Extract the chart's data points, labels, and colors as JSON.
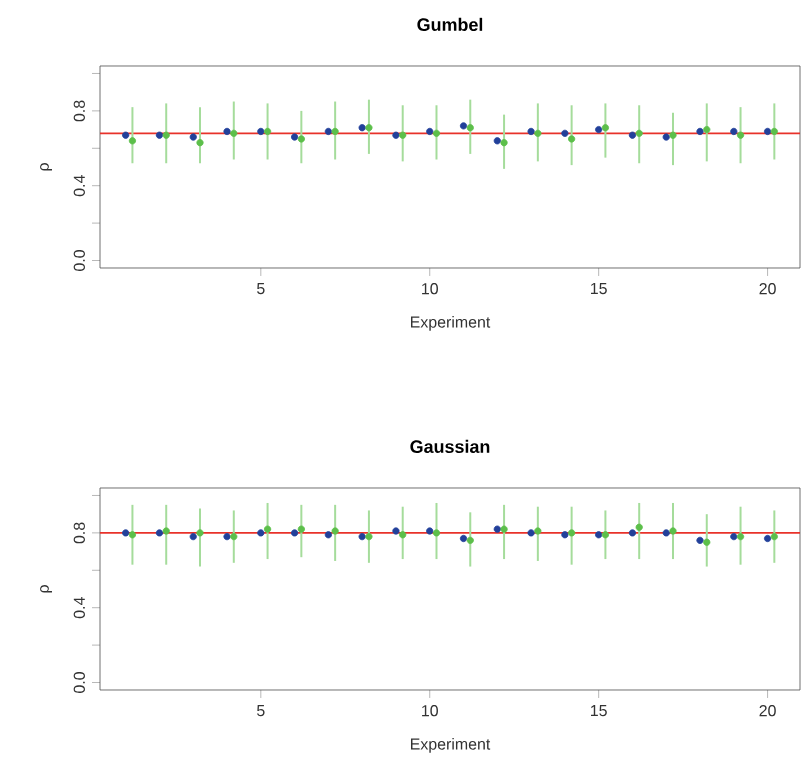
{
  "chart_data": [
    {
      "type": "scatter",
      "title": "Gumbel",
      "xlabel": "Experiment",
      "ylabel": "ρ",
      "xlim": [
        0.24,
        20.96
      ],
      "ylim": [
        -0.04,
        1.04
      ],
      "xticks": [
        5,
        10,
        15,
        20
      ],
      "yticks": [
        {
          "value": 0,
          "label": "0.0"
        },
        {
          "value": 0.2,
          "label": null
        },
        {
          "value": 0.4,
          "label": "0.4"
        },
        {
          "value": 0.6,
          "label": null
        },
        {
          "value": 0.8,
          "label": "0.8"
        },
        {
          "value": 1.0,
          "label": null
        }
      ],
      "marker": "circle",
      "grid": false,
      "ref_lines": [
        {
          "axis": "y",
          "value": 0.68,
          "color": "#e8322a"
        }
      ],
      "series": [
        {
          "color": "#22409a",
          "x": [
            1,
            2,
            3,
            4,
            5,
            6,
            7,
            8,
            9,
            10,
            11,
            12,
            13,
            14,
            15,
            16,
            17,
            18,
            19,
            20
          ],
          "values": [
            0.67,
            0.67,
            0.66,
            0.69,
            0.69,
            0.66,
            0.69,
            0.71,
            0.67,
            0.69,
            0.72,
            0.64,
            0.69,
            0.68,
            0.7,
            0.67,
            0.66,
            0.69,
            0.69,
            0.69
          ]
        },
        {
          "color": "#5cbf4a",
          "x": [
            1.2,
            2.2,
            3.2,
            4.2,
            5.2,
            6.2,
            7.2,
            8.2,
            9.2,
            10.2,
            11.2,
            12.2,
            13.2,
            14.2,
            15.2,
            16.2,
            17.2,
            18.2,
            19.2,
            20.2
          ],
          "values": [
            0.64,
            0.67,
            0.63,
            0.68,
            0.69,
            0.65,
            0.69,
            0.71,
            0.67,
            0.68,
            0.71,
            0.63,
            0.68,
            0.65,
            0.71,
            0.68,
            0.67,
            0.7,
            0.67,
            0.69
          ],
          "errors": [
            [
              0.52,
              0.82
            ],
            [
              0.52,
              0.84
            ],
            [
              0.52,
              0.82
            ],
            [
              0.54,
              0.85
            ],
            [
              0.54,
              0.84
            ],
            [
              0.52,
              0.8
            ],
            [
              0.54,
              0.85
            ],
            [
              0.57,
              0.86
            ],
            [
              0.53,
              0.83
            ],
            [
              0.54,
              0.83
            ],
            [
              0.57,
              0.86
            ],
            [
              0.49,
              0.78
            ],
            [
              0.53,
              0.84
            ],
            [
              0.51,
              0.83
            ],
            [
              0.55,
              0.84
            ],
            [
              0.52,
              0.83
            ],
            [
              0.51,
              0.79
            ],
            [
              0.53,
              0.84
            ],
            [
              0.52,
              0.82
            ],
            [
              0.54,
              0.84
            ]
          ]
        }
      ]
    },
    {
      "type": "scatter",
      "title": "Gaussian",
      "xlabel": "Experiment",
      "ylabel": "ρ",
      "xlim": [
        0.24,
        20.96
      ],
      "ylim": [
        -0.04,
        1.04
      ],
      "xticks": [
        5,
        10,
        15,
        20
      ],
      "yticks": [
        {
          "value": 0,
          "label": "0.0"
        },
        {
          "value": 0.2,
          "label": null
        },
        {
          "value": 0.4,
          "label": "0.4"
        },
        {
          "value": 0.6,
          "label": null
        },
        {
          "value": 0.8,
          "label": "0.8"
        },
        {
          "value": 1.0,
          "label": null
        }
      ],
      "marker": "circle",
      "grid": false,
      "ref_lines": [
        {
          "axis": "y",
          "value": 0.8,
          "color": "#e8322a"
        }
      ],
      "series": [
        {
          "color": "#22409a",
          "x": [
            1,
            2,
            3,
            4,
            5,
            6,
            7,
            8,
            9,
            10,
            11,
            12,
            13,
            14,
            15,
            16,
            17,
            18,
            19,
            20
          ],
          "values": [
            0.8,
            0.8,
            0.78,
            0.78,
            0.8,
            0.8,
            0.79,
            0.78,
            0.81,
            0.81,
            0.77,
            0.82,
            0.8,
            0.79,
            0.79,
            0.8,
            0.8,
            0.76,
            0.78,
            0.77
          ]
        },
        {
          "color": "#5cbf4a",
          "x": [
            1.2,
            2.2,
            3.2,
            4.2,
            5.2,
            6.2,
            7.2,
            8.2,
            9.2,
            10.2,
            11.2,
            12.2,
            13.2,
            14.2,
            15.2,
            16.2,
            17.2,
            18.2,
            19.2,
            20.2
          ],
          "values": [
            0.79,
            0.81,
            0.8,
            0.78,
            0.82,
            0.82,
            0.81,
            0.78,
            0.79,
            0.8,
            0.76,
            0.82,
            0.81,
            0.8,
            0.79,
            0.83,
            0.81,
            0.75,
            0.78,
            0.78
          ],
          "errors": [
            [
              0.63,
              0.95
            ],
            [
              0.63,
              0.95
            ],
            [
              0.62,
              0.93
            ],
            [
              0.64,
              0.92
            ],
            [
              0.66,
              0.96
            ],
            [
              0.67,
              0.95
            ],
            [
              0.65,
              0.95
            ],
            [
              0.64,
              0.92
            ],
            [
              0.66,
              0.94
            ],
            [
              0.66,
              0.96
            ],
            [
              0.62,
              0.91
            ],
            [
              0.66,
              0.95
            ],
            [
              0.65,
              0.94
            ],
            [
              0.63,
              0.94
            ],
            [
              0.66,
              0.92
            ],
            [
              0.66,
              0.96
            ],
            [
              0.66,
              0.96
            ],
            [
              0.62,
              0.9
            ],
            [
              0.63,
              0.94
            ],
            [
              0.64,
              0.92
            ]
          ]
        }
      ]
    }
  ]
}
